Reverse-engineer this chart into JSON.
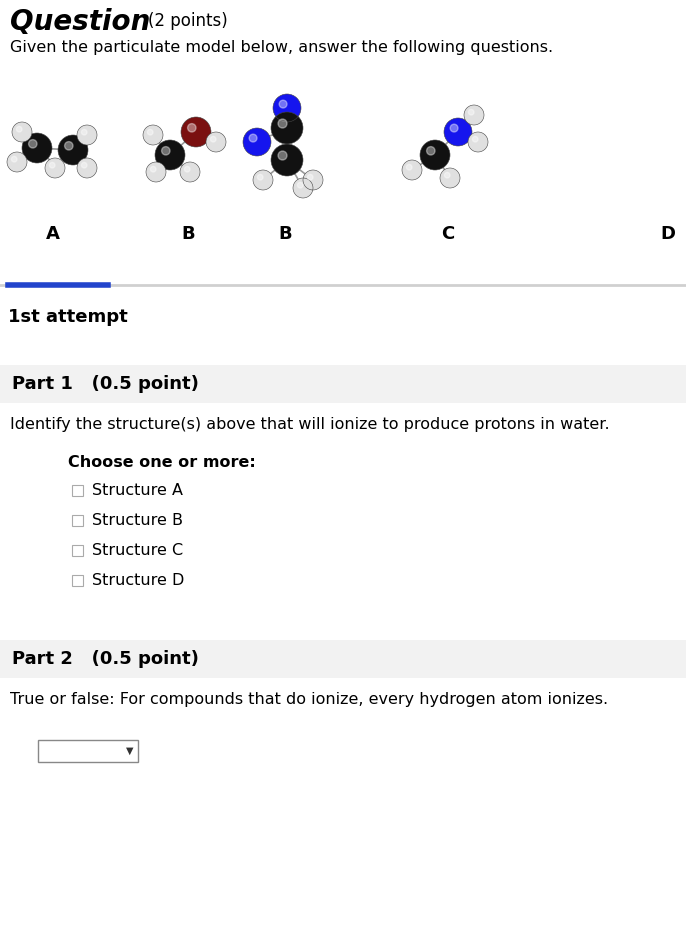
{
  "title": "Question",
  "title_points": "(2 points)",
  "subtitle": "Given the particulate model below, answer the following questions.",
  "molecule_labels": [
    "A",
    "B",
    "C",
    "D"
  ],
  "divider_color": "#2244cc",
  "attempt_label": "1st attempt",
  "part1_header": "Part 1   (0.5 point)",
  "part1_bg": "#f2f2f2",
  "part1_question": "Identify the structure(s) above that will ionize to produce protons in water.",
  "choose_label": "Choose one or more:",
  "options": [
    "Structure A",
    "Structure B",
    "Structure C",
    "Structure D"
  ],
  "part2_header": "Part 2   (0.5 point)",
  "part2_question": "True or false: For compounds that do ionize, every hydrogen atom ionizes.",
  "bg_color": "#ffffff",
  "text_color": "#000000",
  "C_color": "#111111",
  "H_color": "#e0e0e0",
  "O_color": "#7a1010",
  "N_color": "#1515ee"
}
